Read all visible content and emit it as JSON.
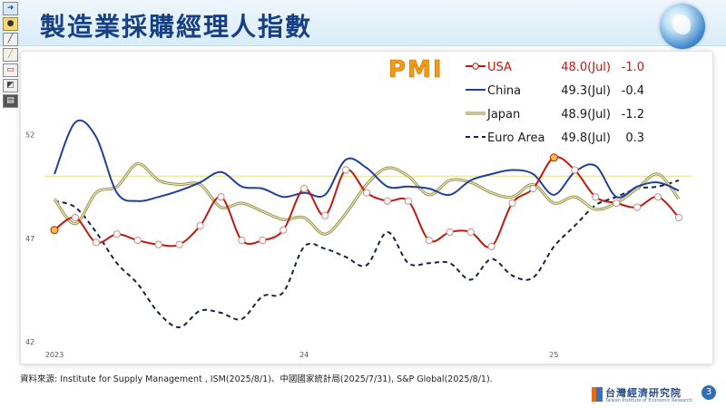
{
  "slide": {
    "title": "製造業採購經理人指數",
    "page_number": "3",
    "source": "資料來源: Institute for Supply Management , ISM(2025/8/1)、中國國家統計局(2025/7/31), S&P Global(2025/8/1).",
    "logo_name": "台灣經濟研究院",
    "logo_sub": "Taiwan Institute of Economic Research"
  },
  "toolbar": {
    "icons": [
      "arrow-icon",
      "pointer-icon",
      "pen-icon",
      "highlighter-icon",
      "eraser-icon",
      "ink-icon",
      "options-icon"
    ]
  },
  "colors": {
    "usa": "#c0190f",
    "china": "#1f3f9c",
    "japan": "#9e9a55",
    "euro": "#1a2142",
    "pmi_label": "#f29a12",
    "threshold": "#ece9a2"
  },
  "chart_data": {
    "type": "line",
    "title": "PMI",
    "x": [
      "2023-01",
      "2023-02",
      "2023-03",
      "2023-04",
      "2023-05",
      "2023-06",
      "2023-07",
      "2023-08",
      "2023-09",
      "2023-10",
      "2023-11",
      "2023-12",
      "2024-01",
      "2024-02",
      "2024-03",
      "2024-04",
      "2024-05",
      "2024-06",
      "2024-07",
      "2024-08",
      "2024-09",
      "2024-10",
      "2024-11",
      "2024-12",
      "2025-01",
      "2025-02",
      "2025-03",
      "2025-04",
      "2025-05",
      "2025-06",
      "2025-07"
    ],
    "x_tick_labels": [
      {
        "x": "2023-01",
        "label": "2023"
      },
      {
        "x": "2024-01",
        "label": "24"
      },
      {
        "x": "2025-01",
        "label": "25"
      }
    ],
    "ylim": [
      42,
      54
    ],
    "y_ticks": [
      42,
      47,
      52
    ],
    "reference_line": 50,
    "series": [
      {
        "name": "USA",
        "latest": "48.0(Jul)",
        "change": "-1.0",
        "values": [
          47.4,
          48.0,
          46.8,
          47.2,
          46.9,
          46.7,
          46.7,
          47.6,
          49.0,
          46.9,
          46.9,
          47.4,
          49.4,
          48.1,
          50.3,
          49.2,
          48.8,
          48.8,
          46.9,
          47.3,
          47.3,
          46.6,
          48.7,
          49.4,
          50.9,
          50.3,
          49.0,
          48.7,
          48.5,
          49.0,
          48.0
        ],
        "highlight_points": [
          "2023-01",
          "2025-01"
        ]
      },
      {
        "name": "China",
        "latest": "49.3(Jul)",
        "change": "-0.4",
        "values": [
          50.1,
          52.6,
          51.9,
          49.2,
          48.8,
          49.0,
          49.3,
          49.7,
          50.2,
          49.5,
          49.4,
          49.0,
          49.2,
          49.1,
          50.8,
          50.4,
          49.5,
          49.5,
          49.4,
          49.1,
          49.8,
          50.1,
          50.3,
          50.1,
          49.1,
          50.2,
          50.5,
          49.0,
          49.5,
          49.7,
          49.3
        ]
      },
      {
        "name": "Japan",
        "latest": "48.9(Jul)",
        "change": "-1.2",
        "values": [
          48.9,
          47.7,
          49.2,
          49.5,
          50.6,
          49.8,
          49.6,
          49.6,
          48.5,
          48.7,
          48.3,
          47.9,
          48.0,
          47.2,
          48.2,
          49.6,
          50.4,
          50.0,
          49.1,
          49.8,
          49.7,
          49.2,
          49.0,
          49.6,
          48.7,
          49.0,
          48.4,
          48.7,
          49.4,
          50.1,
          48.9
        ]
      },
      {
        "name": "Euro Area",
        "latest": "49.8(Jul)",
        "change": "0.3",
        "values": [
          48.8,
          48.5,
          47.3,
          45.8,
          44.8,
          43.4,
          42.7,
          43.5,
          43.4,
          43.1,
          44.2,
          44.4,
          46.6,
          46.5,
          46.1,
          45.7,
          47.3,
          45.8,
          45.8,
          45.8,
          45.0,
          46.0,
          45.2,
          45.1,
          46.6,
          47.6,
          48.6,
          49.0,
          49.4,
          49.5,
          49.8
        ],
        "dashed": true
      }
    ]
  }
}
